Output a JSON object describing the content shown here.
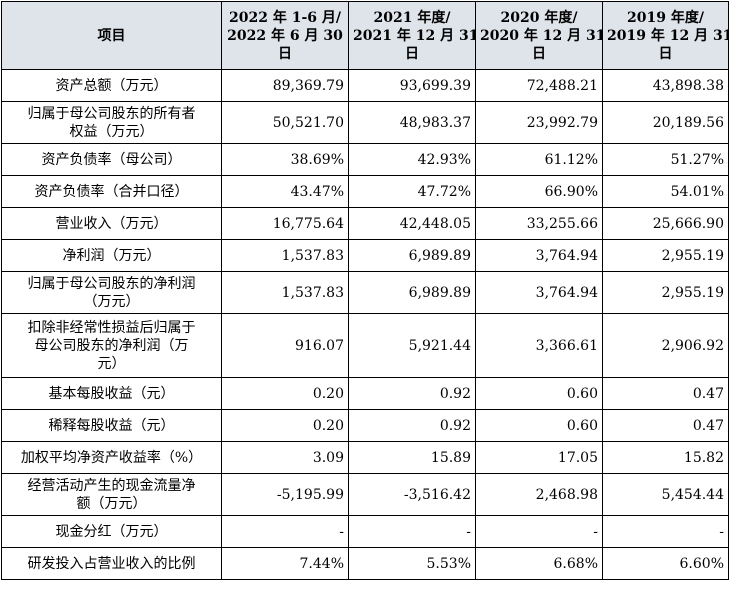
{
  "header": {
    "item": "项目",
    "columns": [
      [
        "2022 年 1-6 月/",
        "2022 年 6 月 30",
        "日"
      ],
      [
        "2021 年度/",
        "2021 年 12 月 31",
        "日"
      ],
      [
        "2020 年度/",
        "2020 年 12 月 31",
        "日"
      ],
      [
        "2019 年度/",
        "2019 年 12 月 31",
        "日"
      ]
    ]
  },
  "rows": [
    {
      "label": [
        "资产总额（万元）"
      ],
      "values": [
        "89,369.79",
        "93,699.39",
        "72,488.21",
        "43,898.38"
      ]
    },
    {
      "label": [
        "归属于母公司股东的所有者",
        "权益（万元）"
      ],
      "values": [
        "50,521.70",
        "48,983.37",
        "23,992.79",
        "20,189.56"
      ]
    },
    {
      "label": [
        "资产负债率（母公司）"
      ],
      "values": [
        "38.69%",
        "42.93%",
        "61.12%",
        "51.27%"
      ]
    },
    {
      "label": [
        "资产负债率（合并口径）"
      ],
      "values": [
        "43.47%",
        "47.72%",
        "66.90%",
        "54.01%"
      ]
    },
    {
      "label": [
        "营业收入（万元）"
      ],
      "values": [
        "16,775.64",
        "42,448.05",
        "33,255.66",
        "25,666.90"
      ]
    },
    {
      "label": [
        "净利润（万元）"
      ],
      "values": [
        "1,537.83",
        "6,989.89",
        "3,764.94",
        "2,955.19"
      ]
    },
    {
      "label": [
        "归属于母公司股东的净利润",
        "（万元）"
      ],
      "values": [
        "1,537.83",
        "6,989.89",
        "3,764.94",
        "2,955.19"
      ]
    },
    {
      "label": [
        "扣除非经常性损益后归属于",
        "母公司股东的净利润（万",
        "元）"
      ],
      "values": [
        "916.07",
        "5,921.44",
        "3,366.61",
        "2,906.92"
      ]
    },
    {
      "label": [
        "基本每股收益（元）"
      ],
      "values": [
        "0.20",
        "0.92",
        "0.60",
        "0.47"
      ]
    },
    {
      "label": [
        "稀释每股收益（元）"
      ],
      "values": [
        "0.20",
        "0.92",
        "0.60",
        "0.47"
      ]
    },
    {
      "label": [
        "加权平均净资产收益率（%）"
      ],
      "values": [
        "3.09",
        "15.89",
        "17.05",
        "15.82"
      ]
    },
    {
      "label": [
        "经营活动产生的现金流量净",
        "额（万元）"
      ],
      "values": [
        "-5,195.99",
        "-3,516.42",
        "2,468.98",
        "5,454.44"
      ]
    },
    {
      "label": [
        "现金分红（万元）"
      ],
      "values": [
        "-",
        "-",
        "-",
        "-"
      ]
    },
    {
      "label": [
        "研发投入占营业收入的比例"
      ],
      "values": [
        "7.44%",
        "5.53%",
        "6.68%",
        "6.60%"
      ]
    }
  ]
}
